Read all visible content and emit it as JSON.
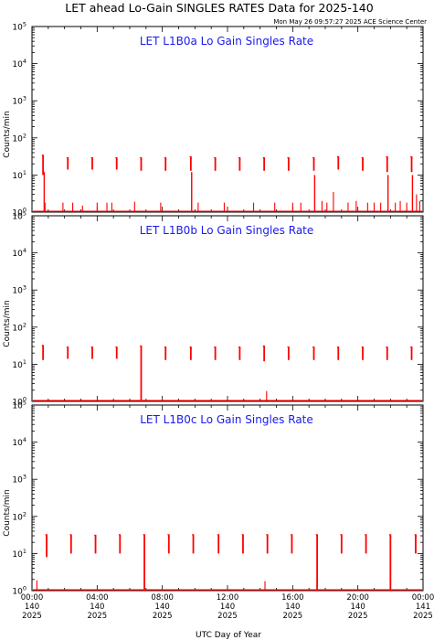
{
  "chart_data": {
    "type": "line",
    "title": "LET ahead Lo-Gain SINGLES RATES Data for 2025-140",
    "subtitle": "Mon May 26 09:57:27 2025 ACE Science Center",
    "xlabel": "UTC Day of Year",
    "ylabel": "Counts/min",
    "yscale": "log",
    "ylim": [
      1,
      100000
    ],
    "xlim_hours": [
      0,
      24
    ],
    "ytick_exponents": [
      "0",
      "1",
      "2",
      "3",
      "4",
      "5"
    ],
    "xticks": [
      {
        "time": "00:00",
        "day": "140",
        "year": "2025"
      },
      {
        "time": "04:00",
        "day": "140",
        "year": "2025"
      },
      {
        "time": "08:00",
        "day": "140",
        "year": "2025"
      },
      {
        "time": "12:00",
        "day": "140",
        "year": "2025"
      },
      {
        "time": "16:00",
        "day": "140",
        "year": "2025"
      },
      {
        "time": "20:00",
        "day": "140",
        "year": "2025"
      },
      {
        "time": "00:00",
        "day": "141",
        "year": "2025"
      }
    ],
    "grid": false,
    "series_color": "#ff0000",
    "label_color": "#1a1aee",
    "panels": [
      {
        "label": "LET L1B0a Lo Gain Singles Rate",
        "spikes": [
          {
            "x": 0.68,
            "high": 35,
            "low": 10
          },
          {
            "x": 2.2,
            "high": 30,
            "low": 14
          },
          {
            "x": 3.7,
            "high": 30,
            "low": 14
          },
          {
            "x": 5.2,
            "high": 30,
            "low": 14
          },
          {
            "x": 6.7,
            "high": 30,
            "low": 13
          },
          {
            "x": 8.2,
            "high": 30,
            "low": 13
          },
          {
            "x": 9.75,
            "high": 32,
            "low": 13
          },
          {
            "x": 11.25,
            "high": 30,
            "low": 13
          },
          {
            "x": 12.75,
            "high": 30,
            "low": 13
          },
          {
            "x": 14.25,
            "high": 30,
            "low": 13
          },
          {
            "x": 15.75,
            "high": 30,
            "low": 13
          },
          {
            "x": 17.3,
            "high": 30,
            "low": 13
          },
          {
            "x": 18.8,
            "high": 32,
            "low": 14
          },
          {
            "x": 20.3,
            "high": 30,
            "low": 13
          },
          {
            "x": 21.8,
            "high": 32,
            "low": 12
          },
          {
            "x": 23.3,
            "high": 32,
            "low": 12
          }
        ],
        "drops": [
          {
            "x": 0.75,
            "high": 12,
            "low": 1
          },
          {
            "x": 9.8,
            "high": 12,
            "low": 1
          },
          {
            "x": 17.35,
            "high": 10,
            "low": 1
          },
          {
            "x": 21.85,
            "high": 10,
            "low": 1
          },
          {
            "x": 23.35,
            "high": 10,
            "low": 1
          }
        ],
        "noise": [
          {
            "x": 0.8,
            "y": 1.8
          },
          {
            "x": 1.9,
            "y": 1.8
          },
          {
            "x": 2.5,
            "y": 1.8
          },
          {
            "x": 3.1,
            "y": 1.5
          },
          {
            "x": 4.0,
            "y": 1.8
          },
          {
            "x": 4.6,
            "y": 1.8
          },
          {
            "x": 4.9,
            "y": 1.8
          },
          {
            "x": 6.3,
            "y": 1.9
          },
          {
            "x": 7.9,
            "y": 1.8
          },
          {
            "x": 10.2,
            "y": 1.8
          },
          {
            "x": 11.8,
            "y": 1.8
          },
          {
            "x": 13.6,
            "y": 1.8
          },
          {
            "x": 14.9,
            "y": 1.8
          },
          {
            "x": 16.0,
            "y": 1.8
          },
          {
            "x": 16.5,
            "y": 1.8
          },
          {
            "x": 17.8,
            "y": 2.0
          },
          {
            "x": 18.1,
            "y": 1.8
          },
          {
            "x": 18.5,
            "y": 3.5
          },
          {
            "x": 19.4,
            "y": 1.8
          },
          {
            "x": 19.9,
            "y": 2.0
          },
          {
            "x": 20.6,
            "y": 1.8
          },
          {
            "x": 21.0,
            "y": 1.8
          },
          {
            "x": 21.4,
            "y": 1.8
          },
          {
            "x": 22.3,
            "y": 1.8
          },
          {
            "x": 22.6,
            "y": 2.0
          },
          {
            "x": 23.0,
            "y": 1.8
          },
          {
            "x": 23.6,
            "y": 3.0
          },
          {
            "x": 23.8,
            "y": 2.0
          }
        ]
      },
      {
        "label": "LET L1B0b Lo Gain Singles Rate",
        "spikes": [
          {
            "x": 0.68,
            "high": 33,
            "low": 13
          },
          {
            "x": 2.2,
            "high": 30,
            "low": 14
          },
          {
            "x": 3.7,
            "high": 30,
            "low": 14
          },
          {
            "x": 5.2,
            "high": 30,
            "low": 14
          },
          {
            "x": 6.7,
            "high": 32,
            "low": 1
          },
          {
            "x": 8.2,
            "high": 30,
            "low": 13
          },
          {
            "x": 9.75,
            "high": 30,
            "low": 13
          },
          {
            "x": 11.25,
            "high": 30,
            "low": 13
          },
          {
            "x": 12.75,
            "high": 30,
            "low": 13
          },
          {
            "x": 14.25,
            "high": 32,
            "low": 12
          },
          {
            "x": 15.75,
            "high": 30,
            "low": 13
          },
          {
            "x": 17.3,
            "high": 30,
            "low": 13
          },
          {
            "x": 18.8,
            "high": 30,
            "low": 13
          },
          {
            "x": 20.3,
            "high": 30,
            "low": 13
          },
          {
            "x": 21.8,
            "high": 30,
            "low": 13
          },
          {
            "x": 23.3,
            "high": 30,
            "low": 13
          }
        ],
        "drops": [],
        "noise": [
          {
            "x": 14.4,
            "y": 1.9
          }
        ]
      },
      {
        "label": "LET L1B0c Lo Gain Singles Rate",
        "spikes": [
          {
            "x": 0.9,
            "high": 33,
            "low": 8
          },
          {
            "x": 2.4,
            "high": 33,
            "low": 10
          },
          {
            "x": 3.9,
            "high": 32,
            "low": 10
          },
          {
            "x": 5.4,
            "high": 33,
            "low": 10
          },
          {
            "x": 6.9,
            "high": 33,
            "low": 1
          },
          {
            "x": 8.4,
            "high": 33,
            "low": 10
          },
          {
            "x": 9.9,
            "high": 33,
            "low": 10
          },
          {
            "x": 11.45,
            "high": 33,
            "low": 10
          },
          {
            "x": 12.95,
            "high": 33,
            "low": 10
          },
          {
            "x": 14.45,
            "high": 33,
            "low": 10
          },
          {
            "x": 15.95,
            "high": 33,
            "low": 10
          },
          {
            "x": 17.5,
            "high": 33,
            "low": 1
          },
          {
            "x": 19.0,
            "high": 33,
            "low": 10
          },
          {
            "x": 20.5,
            "high": 33,
            "low": 10
          },
          {
            "x": 22.0,
            "high": 33,
            "low": 1
          },
          {
            "x": 23.55,
            "high": 33,
            "low": 10
          }
        ],
        "drops": [],
        "noise": [
          {
            "x": 0.3,
            "y": 1.9
          },
          {
            "x": 14.3,
            "y": 1.8
          }
        ]
      }
    ]
  }
}
